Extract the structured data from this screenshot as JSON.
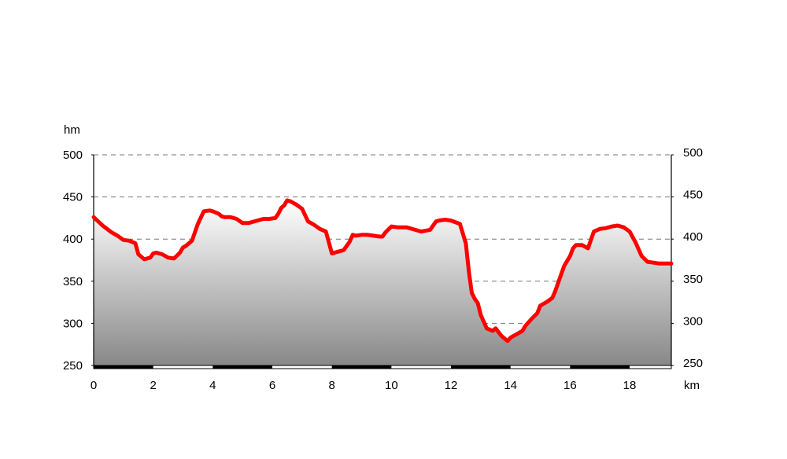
{
  "chart_data": {
    "type": "area",
    "title": "",
    "xlabel": "km",
    "ylabel": "hm",
    "xlim": [
      0,
      19.4
    ],
    "ylim": [
      250,
      500
    ],
    "x_ticks": [
      0,
      2,
      4,
      6,
      8,
      10,
      12,
      14,
      16,
      18
    ],
    "y_ticks": [
      250,
      300,
      350,
      400,
      450,
      500
    ],
    "grid": "horizontal-dashed",
    "legend": "none",
    "colors": {
      "line": "#ff0000",
      "fill_top": "#ffffff",
      "fill_bottom": "#888888",
      "grid": "#777777",
      "axis": "#000000"
    },
    "series": [
      {
        "x": [
          0,
          0.3,
          0.6,
          0.8,
          1.0,
          1.2,
          1.4,
          1.5,
          1.7,
          1.9,
          2.0,
          2.1,
          2.3,
          2.5,
          2.7,
          2.9,
          3.0,
          3.1,
          3.3,
          3.5,
          3.7,
          3.9,
          4.0,
          4.2,
          4.3,
          4.4,
          4.6,
          4.8,
          5.0,
          5.2,
          5.5,
          5.7,
          5.9,
          6.1,
          6.2,
          6.3,
          6.4,
          6.5,
          6.6,
          6.8,
          7.0,
          7.2,
          7.4,
          7.6,
          7.8,
          8.0,
          8.1,
          8.2,
          8.4,
          8.6,
          8.7,
          8.8,
          9.0,
          9.2,
          9.4,
          9.6,
          9.7,
          9.8,
          10.0,
          10.2,
          10.5,
          10.8,
          11.0,
          11.3,
          11.5,
          11.6,
          11.8,
          12.0,
          12.3,
          12.5,
          12.6,
          12.7,
          12.8,
          12.9,
          13.0,
          13.2,
          13.4,
          13.5,
          13.7,
          13.9,
          14.0,
          14.2,
          14.3,
          14.4,
          14.5,
          14.7,
          14.9,
          15.0,
          15.2,
          15.4,
          15.5,
          15.6,
          15.8,
          16.0,
          16.1,
          16.2,
          16.4,
          16.6,
          16.8,
          17.0,
          17.2,
          17.4,
          17.6,
          17.8,
          18.0,
          18.2,
          18.4,
          18.6,
          18.8,
          19.0,
          19.2,
          19.4
        ],
        "y": [
          426,
          416,
          408,
          404,
          399,
          398,
          395,
          382,
          376,
          378,
          383,
          384,
          382,
          378,
          377,
          384,
          390,
          392,
          398,
          418,
          433,
          434,
          433,
          430,
          427,
          426,
          426,
          424,
          419,
          419,
          422,
          424,
          424,
          425,
          430,
          437,
          440,
          446,
          445,
          441,
          436,
          421,
          417,
          412,
          409,
          383,
          384,
          385,
          387,
          397,
          405,
          404,
          405,
          405,
          404,
          403,
          403,
          408,
          415,
          414,
          414,
          411,
          409,
          411,
          421,
          422,
          423,
          422,
          418,
          395,
          362,
          336,
          329,
          324,
          310,
          294,
          291,
          294,
          285,
          279,
          283,
          287,
          289,
          291,
          297,
          305,
          312,
          321,
          325,
          330,
          338,
          348,
          368,
          380,
          389,
          393,
          393,
          389,
          409,
          412,
          413,
          415,
          416,
          414,
          409,
          396,
          380,
          373,
          372,
          371,
          371,
          371
        ]
      }
    ]
  }
}
